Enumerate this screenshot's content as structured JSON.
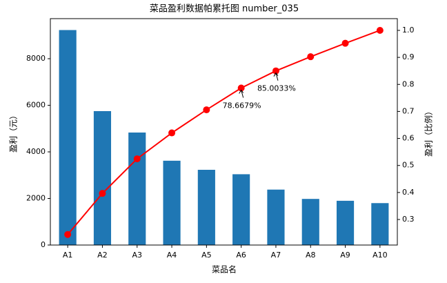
{
  "chart_data": {
    "type": "pareto",
    "title": "菜品盈利数据帕累托图 number_035",
    "x_label": "菜品名",
    "y_label": "盈利（元）",
    "y2_label": "盈利（比例）",
    "categories": [
      "A1",
      "A2",
      "A3",
      "A4",
      "A5",
      "A6",
      "A7",
      "A8",
      "A9",
      "A10"
    ],
    "series": [
      {
        "type": "bar",
        "color": "#1f77b4",
        "values": [
          9230,
          5750,
          4830,
          3620,
          3230,
          3040,
          2380,
          1980,
          1900,
          1800
        ]
      },
      {
        "type": "line",
        "axis": "y2",
        "color": "#ff0000",
        "values": [
          0.2444,
          0.3967,
          0.5246,
          0.6205,
          0.706,
          0.786679,
          0.850033,
          0.9025,
          0.9523,
          1.0
        ],
        "value_labels": [
          null,
          null,
          null,
          null,
          null,
          "78.6679%",
          "85.0033%",
          null,
          null,
          null
        ]
      }
    ],
    "ylim": [
      0,
      9720
    ],
    "yticks": [
      0,
      2000,
      4000,
      6000,
      8000
    ],
    "y2lim": [
      0.2055,
      1.0434
    ],
    "y2ticks": [
      0.3,
      0.4,
      0.5,
      0.6,
      0.7,
      0.8,
      0.9,
      {
        "value": 1,
        "label": "1.0"
      }
    ]
  }
}
